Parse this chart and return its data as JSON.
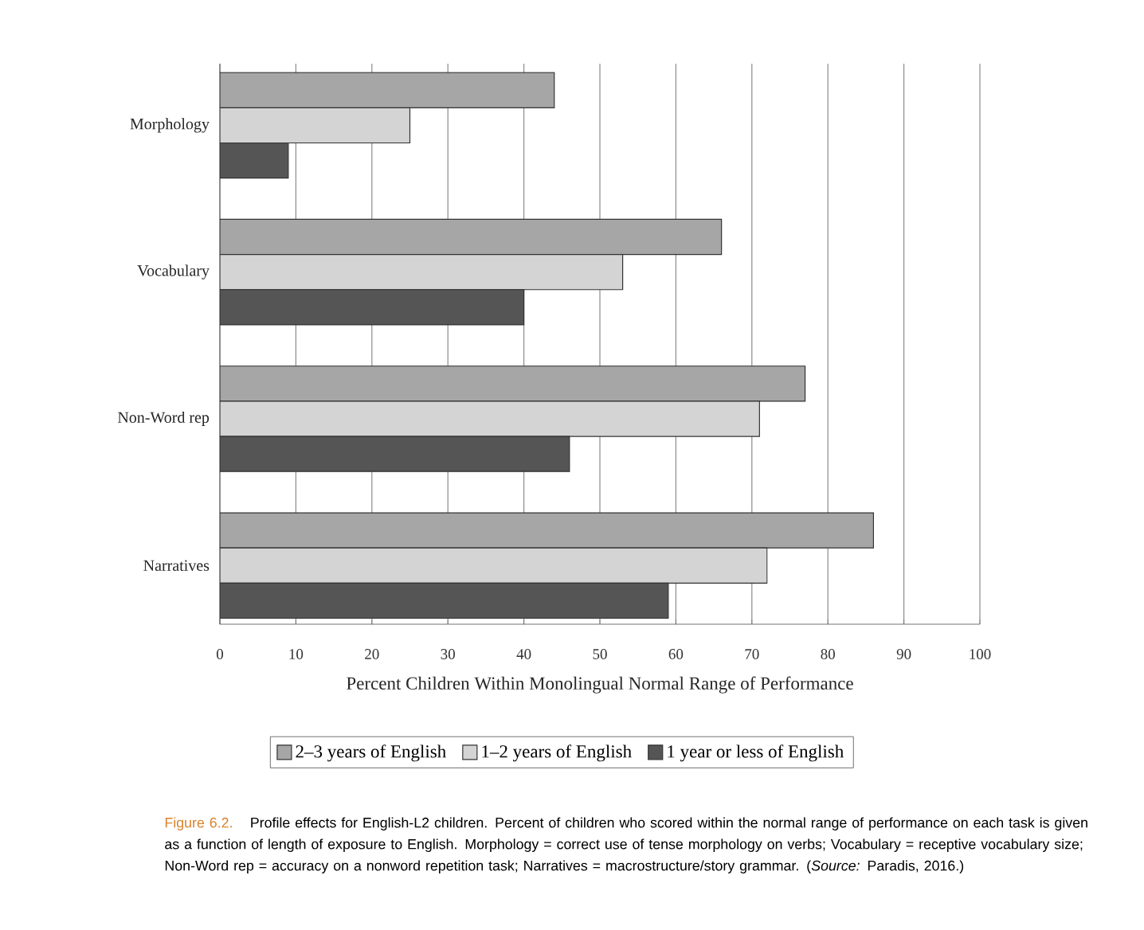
{
  "chart_data": {
    "type": "bar",
    "orientation": "horizontal",
    "categories": [
      "Morphology",
      "Vocabulary",
      "Non-Word rep",
      "Narratives"
    ],
    "series": [
      {
        "name": "2–3 years of English",
        "color": "#a6a6a6",
        "values": [
          44,
          66,
          77,
          86
        ]
      },
      {
        "name": "1–2 years of English",
        "color": "#d4d4d4",
        "values": [
          25,
          53,
          71,
          72
        ]
      },
      {
        "name": "1 year or less of English",
        "color": "#555555",
        "values": [
          9,
          40,
          46,
          59
        ]
      }
    ],
    "xlabel": "Percent Children Within Monolingual Normal Range of Performance",
    "xlim": [
      0,
      100
    ],
    "xticks": [
      0,
      10,
      20,
      30,
      40,
      50,
      60,
      70,
      80,
      90,
      100
    ],
    "grid": "x",
    "legend": "bottom",
    "annotations": [
      "Figure 6.2.",
      "Profile effects for English-L2 children. Percent of children who scored within the normal range of performance on each task is given as a function of length of exposure to English. Morphology = correct use of tense morphology on verbs; Vocabulary = receptive vocabulary size; Non-Word rep = accuracy on a nonword repetition task; Narratives = macrostructure/story grammar. (*Source:* Paradis, 2016.)"
    ]
  }
}
